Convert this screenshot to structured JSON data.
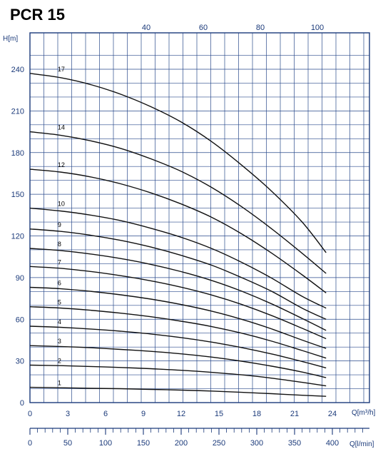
{
  "chart_data": {
    "type": "line",
    "title": "PCR 15",
    "ylabel": "H[m]",
    "xlabel": "Q[m³/h]",
    "x2label": "Q[l/min]",
    "x3label": "",
    "ylim": [
      0,
      250
    ],
    "xlim": [
      0,
      24
    ],
    "y_ticks": [
      0,
      30,
      60,
      90,
      120,
      150,
      180,
      210,
      240
    ],
    "x_ticks": [
      0,
      3,
      6,
      9,
      12,
      15,
      18,
      21,
      24
    ],
    "x2_ticks": [
      0,
      50,
      100,
      150,
      200,
      250,
      300,
      350,
      400
    ],
    "top_ticks": [
      40,
      60,
      80,
      100
    ],
    "x": [
      0,
      2.4,
      4.8,
      7.2,
      9.6,
      12,
      14.4,
      16.8,
      19.2,
      21.6,
      23.5
    ],
    "series": [
      {
        "name": "1",
        "values": [
          11,
          10.7,
          10.3,
          10,
          9.5,
          9,
          8.3,
          7.4,
          6.4,
          5.3,
          4.5
        ]
      },
      {
        "name": "2",
        "values": [
          27,
          26.6,
          26,
          25.3,
          24.4,
          23.3,
          21.8,
          20,
          17.6,
          14.6,
          12
        ]
      },
      {
        "name": "3",
        "values": [
          41,
          40.4,
          39.5,
          38.3,
          36.9,
          35.1,
          32.8,
          29.8,
          26.2,
          22,
          18
        ]
      },
      {
        "name": "4",
        "values": [
          55,
          54.2,
          53,
          51.4,
          49.4,
          46.8,
          43.6,
          39.6,
          35,
          29.6,
          25
        ]
      },
      {
        "name": "5",
        "values": [
          69,
          68.1,
          66.5,
          64.4,
          61.8,
          58.6,
          54.8,
          50,
          44.2,
          37.5,
          32
        ]
      },
      {
        "name": "6",
        "values": [
          83,
          82,
          80.1,
          77.6,
          74.5,
          70.6,
          65.9,
          60,
          53,
          45,
          39
        ]
      },
      {
        "name": "7",
        "values": [
          98,
          96.7,
          94.4,
          91.4,
          87.7,
          83.1,
          77.5,
          70.7,
          62.6,
          53.5,
          46
        ]
      },
      {
        "name": "8",
        "values": [
          111,
          109.5,
          107,
          103.7,
          99.5,
          94.3,
          88,
          80.2,
          71,
          60.6,
          52
        ]
      },
      {
        "name": "9",
        "values": [
          125,
          123.3,
          120.5,
          116.8,
          112,
          106,
          99,
          90,
          80,
          68,
          60
        ]
      },
      {
        "name": "10",
        "values": [
          140,
          138,
          135,
          131,
          125.5,
          119,
          111,
          101,
          89.5,
          76.5,
          68
        ]
      },
      {
        "name": "12",
        "values": [
          168,
          166,
          162.5,
          157.5,
          151,
          143,
          133.5,
          121.5,
          107.5,
          92,
          79
        ]
      },
      {
        "name": "14",
        "values": [
          195,
          192.5,
          188.5,
          183,
          175.5,
          166.5,
          155,
          141,
          125,
          107.5,
          93
        ]
      },
      {
        "name": "17",
        "values": [
          237,
          234,
          229,
          222,
          213,
          202,
          188,
          171,
          152,
          130,
          108
        ]
      }
    ]
  }
}
